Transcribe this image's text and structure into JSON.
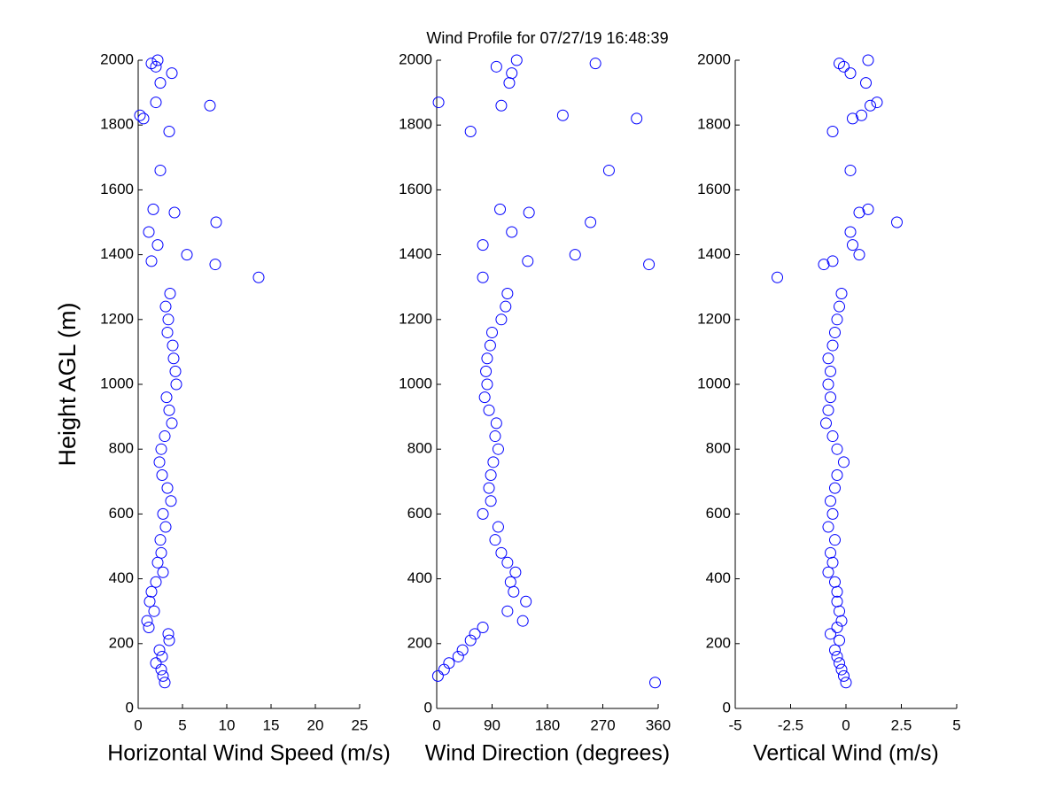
{
  "chart_data": [
    {
      "type": "scatter",
      "title": "Wind Profile for  07/27/19 16:48:39",
      "x_label": "Horizontal Wind Speed (m/s)",
      "y_label": "Height AGL (m)",
      "color": "#0000ff",
      "xlim": [
        0,
        25
      ],
      "xticks": [
        0,
        5,
        10,
        15,
        20,
        25
      ],
      "ylim": [
        0,
        2000
      ],
      "yticks": [
        0,
        200,
        400,
        600,
        800,
        1000,
        1200,
        1400,
        1600,
        1800,
        2000
      ],
      "x": [
        3.0,
        2.8,
        2.6,
        2.0,
        2.7,
        2.4,
        3.5,
        3.4,
        1.2,
        1.0,
        1.8,
        1.3,
        1.5,
        2.0,
        2.8,
        2.2,
        2.6,
        2.5,
        3.1,
        2.8,
        3.7,
        3.3,
        2.7,
        2.4,
        2.6,
        3.0,
        3.8,
        3.5,
        3.2,
        4.3,
        4.2,
        4.0,
        3.9,
        3.3,
        3.4,
        3.1,
        3.6,
        13.6,
        8.7,
        1.5,
        5.5,
        2.2,
        1.2,
        8.8,
        4.1,
        1.7,
        2.5,
        3.5,
        0.6,
        0.2,
        8.1,
        2.0,
        2.5,
        3.8,
        2.0,
        1.5,
        2.2
      ],
      "y": [
        80,
        100,
        120,
        140,
        160,
        180,
        210,
        230,
        250,
        270,
        300,
        330,
        360,
        390,
        420,
        450,
        480,
        520,
        560,
        600,
        640,
        680,
        720,
        760,
        800,
        840,
        880,
        920,
        960,
        1000,
        1040,
        1080,
        1120,
        1160,
        1200,
        1240,
        1280,
        1330,
        1370,
        1380,
        1400,
        1430,
        1470,
        1500,
        1530,
        1540,
        1660,
        1780,
        1820,
        1830,
        1860,
        1870,
        1930,
        1960,
        1980,
        1990,
        2000
      ]
    },
    {
      "type": "scatter",
      "x_label": "Wind Direction (degrees)",
      "color": "#0000ff",
      "xlim": [
        0,
        360
      ],
      "xticks": [
        0,
        90,
        180,
        270,
        360
      ],
      "ylim": [
        0,
        2000
      ],
      "yticks": [
        0,
        200,
        400,
        600,
        800,
        1000,
        1200,
        1400,
        1600,
        1800,
        2000
      ],
      "x": [
        355,
        2,
        12,
        20,
        35,
        42,
        55,
        62,
        75,
        140,
        115,
        145,
        125,
        120,
        128,
        115,
        105,
        95,
        100,
        75,
        88,
        85,
        88,
        92,
        100,
        95,
        97,
        85,
        78,
        82,
        80,
        82,
        87,
        90,
        105,
        112,
        115,
        75,
        345,
        148,
        225,
        75,
        122,
        250,
        150,
        103,
        280,
        55,
        325,
        205,
        105,
        3,
        118,
        122,
        97,
        258,
        130
      ],
      "y": [
        80,
        100,
        120,
        140,
        160,
        180,
        210,
        230,
        250,
        270,
        300,
        330,
        360,
        390,
        420,
        450,
        480,
        520,
        560,
        600,
        640,
        680,
        720,
        760,
        800,
        840,
        880,
        920,
        960,
        1000,
        1040,
        1080,
        1120,
        1160,
        1200,
        1240,
        1280,
        1330,
        1370,
        1380,
        1400,
        1430,
        1470,
        1500,
        1530,
        1540,
        1660,
        1780,
        1820,
        1830,
        1860,
        1870,
        1930,
        1960,
        1980,
        1990,
        2000
      ]
    },
    {
      "type": "scatter",
      "x_label": "Vertical Wind (m/s)",
      "color": "#0000ff",
      "xlim": [
        -5,
        5
      ],
      "xticks": [
        -5,
        -2.5,
        0,
        2.5,
        5
      ],
      "ylim": [
        0,
        2000
      ],
      "yticks": [
        0,
        200,
        400,
        600,
        800,
        1000,
        1200,
        1400,
        1600,
        1800,
        2000
      ],
      "x": [
        0,
        -0.1,
        -0.2,
        -0.3,
        -0.4,
        -0.5,
        -0.3,
        -0.7,
        -0.4,
        -0.2,
        -0.3,
        -0.4,
        -0.4,
        -0.5,
        -0.8,
        -0.6,
        -0.7,
        -0.5,
        -0.8,
        -0.6,
        -0.7,
        -0.5,
        -0.4,
        -0.1,
        -0.4,
        -0.6,
        -0.9,
        -0.8,
        -0.7,
        -0.8,
        -0.7,
        -0.8,
        -0.6,
        -0.5,
        -0.4,
        -0.3,
        -0.2,
        -3.1,
        -1.0,
        -0.6,
        0.6,
        0.3,
        0.2,
        2.3,
        0.6,
        1.0,
        0.2,
        -0.6,
        0.3,
        0.7,
        1.1,
        1.4,
        0.9,
        0.2,
        -0.1,
        -0.3,
        1.0
      ],
      "y": [
        80,
        100,
        120,
        140,
        160,
        180,
        210,
        230,
        250,
        270,
        300,
        330,
        360,
        390,
        420,
        450,
        480,
        520,
        560,
        600,
        640,
        680,
        720,
        760,
        800,
        840,
        880,
        920,
        960,
        1000,
        1040,
        1080,
        1120,
        1160,
        1200,
        1240,
        1280,
        1330,
        1370,
        1380,
        1400,
        1430,
        1470,
        1500,
        1530,
        1540,
        1660,
        1780,
        1820,
        1830,
        1860,
        1870,
        1930,
        1960,
        1980,
        1990,
        2000
      ]
    }
  ]
}
